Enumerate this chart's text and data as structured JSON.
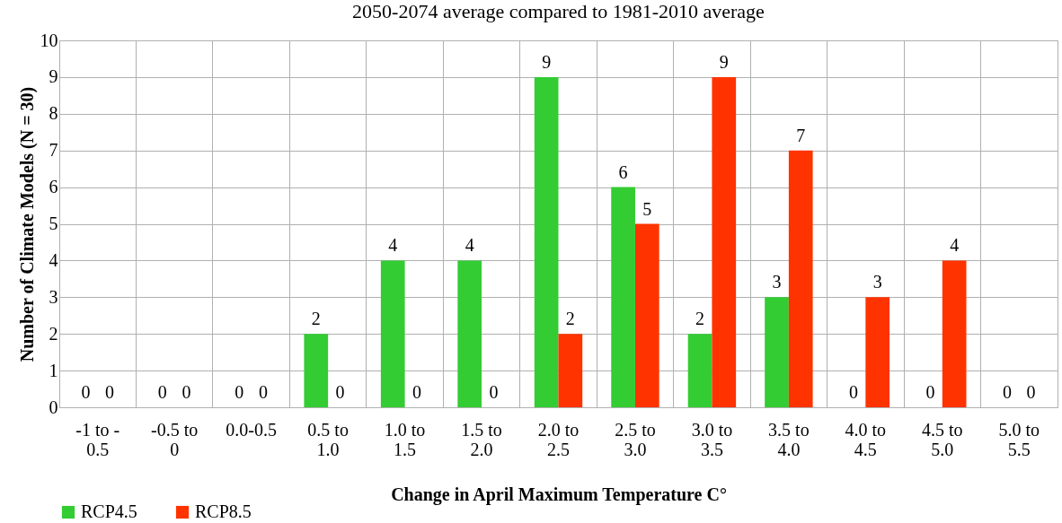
{
  "chart_data": {
    "type": "bar",
    "title": "2050-2074 average compared to 1981-2010 average",
    "xlabel": "Change in April Maximum Temperature C°",
    "ylabel": "Number of Climate Models (N = 30)",
    "categories": [
      "-1 to -0.5",
      "-0.5 to 0",
      "0.0-0.5",
      "0.5 to 1.0",
      "1.0 to 1.5",
      "1.5 to 2.0",
      "2.0 to 2.5",
      "2.5 to 3.0",
      "3.0 to 3.5",
      "3.5 to 4.0",
      "4.0 to 4.5",
      "4.5 to 5.0",
      "5.0 to 5.5"
    ],
    "series": [
      {
        "name": "RCP4.5",
        "color": "#33cc33",
        "values": [
          0,
          0,
          0,
          2,
          4,
          4,
          9,
          6,
          2,
          3,
          0,
          0,
          0
        ]
      },
      {
        "name": "RCP8.5",
        "color": "#ff3300",
        "values": [
          0,
          0,
          0,
          0,
          0,
          0,
          2,
          5,
          9,
          7,
          3,
          4,
          0
        ]
      }
    ],
    "ylim": [
      0,
      10
    ],
    "yticks": [
      0,
      1,
      2,
      3,
      4,
      5,
      6,
      7,
      8,
      9,
      10
    ],
    "grid": true,
    "legend": "bottom",
    "data_labels": true
  }
}
